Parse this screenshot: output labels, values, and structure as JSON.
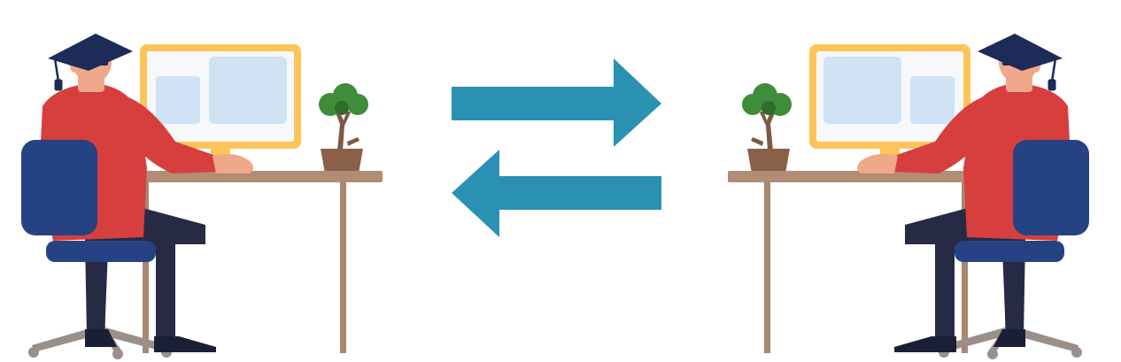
{
  "scene": {
    "description_text": ""
  },
  "colors": {
    "background": "#ffffff",
    "arrow": "#2a91b2",
    "monitor_frame": "#fcc55a",
    "monitor_screen": "#f6f8fc",
    "monitor_panel": "#cfe3f4",
    "desk": "#b08d74",
    "desk_leg": "#a98770",
    "shirt": "#d63f3d",
    "pants": "#262a45",
    "chair": "#254282",
    "chair_base": "#9a8f89",
    "cap": "#1c2b57",
    "tassel": "#1c2b57",
    "skin": "#f0a88a",
    "plant_leaf": "#3f8d39",
    "plant_leaf_dark": "#2f6d2a",
    "pot": "#8a6049",
    "trunk": "#7a5a45",
    "shoe": "#1a1f36"
  },
  "icons": {
    "left_figure": "student-at-computer-icon",
    "right_figure": "student-at-computer-icon",
    "exchange": "bidirectional-arrows-icon"
  }
}
